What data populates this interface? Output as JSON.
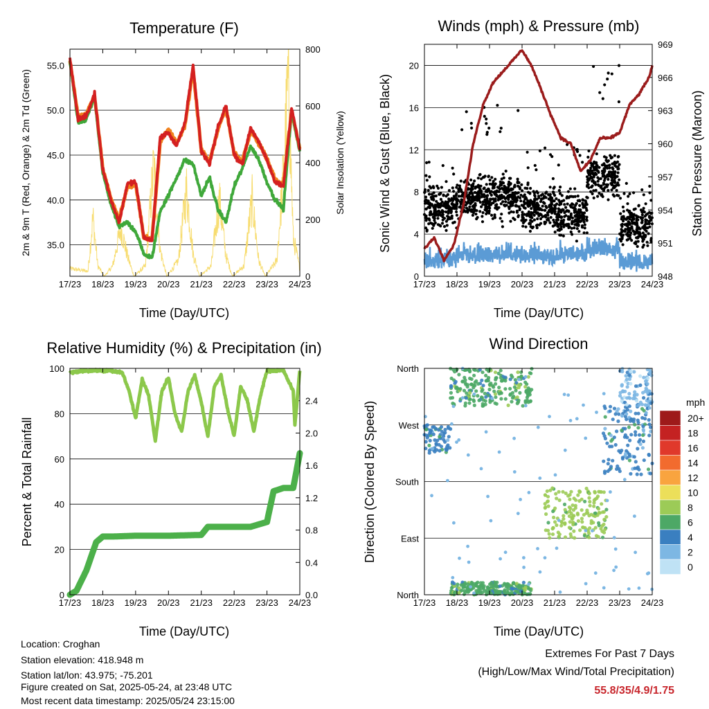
{
  "colors": {
    "temp_red": "#d42020",
    "temp_orange": "#f0821e",
    "dewpoint_green": "#3fa83a",
    "solar_yellow": "#f7dc6f",
    "gust_black": "#000000",
    "wind_blue": "#5b9bd5",
    "pressure_maroon": "#9b1c1c",
    "rh_green": "#8cc84b",
    "rain_green": "#4cb04a",
    "extremes_red": "#c8262c"
  },
  "time_ticks": [
    "17/23",
    "18/23",
    "19/23",
    "20/23",
    "21/23",
    "22/23",
    "23/23",
    "24/23"
  ],
  "speed_legend": {
    "title": "mph",
    "levels": [
      {
        "label": "20+",
        "color": "#9e1a1a"
      },
      {
        "label": "18",
        "color": "#c42222"
      },
      {
        "label": "16",
        "color": "#e0392b"
      },
      {
        "label": "14",
        "color": "#f26b2e"
      },
      {
        "label": "12",
        "color": "#f9a43f"
      },
      {
        "label": "10",
        "color": "#ecdf5a"
      },
      {
        "label": "8",
        "color": "#9ccb57"
      },
      {
        "label": "6",
        "color": "#4da866"
      },
      {
        "label": "4",
        "color": "#3a7fc0"
      },
      {
        "label": "2",
        "color": "#7db7e3"
      },
      {
        "label": "0",
        "color": "#bfe2f5"
      }
    ]
  },
  "chart_data": [
    {
      "type": "line",
      "title": "Temperature (F)",
      "xlabel": "Time (Day/UTC)",
      "ylabel": "2m & 9m T (Red, Orange) & 2m Td (Green)",
      "y2label": "Solar Insolation (Yellow)",
      "ylim": [
        31.5,
        56.8
      ],
      "y2lim": [
        0,
        800
      ],
      "yticks": [
        "55.0",
        "50.0",
        "45.0",
        "40.0",
        "35.0"
      ],
      "y2ticks": [
        "800",
        "600",
        "400",
        "200",
        "0"
      ],
      "x_days": [
        0,
        0.25,
        0.5,
        0.75,
        1,
        1.25,
        1.5,
        1.75,
        2,
        2.25,
        2.5,
        2.75,
        3,
        3.25,
        3.5,
        3.75,
        4,
        4.25,
        4.5,
        4.75,
        5,
        5.25,
        5.5,
        5.75,
        6,
        6.25,
        6.5,
        6.75,
        7
      ],
      "series": [
        {
          "name": "2m T",
          "axis": "left",
          "values": [
            55.8,
            49.0,
            49.3,
            51.8,
            43.5,
            40.0,
            37.5,
            41.8,
            42.0,
            35.8,
            35.5,
            47.0,
            47.5,
            46.0,
            48.5,
            55.0,
            45.5,
            44.0,
            48.0,
            50.5,
            45.0,
            44.0,
            48.0,
            46.5,
            44.5,
            42.0,
            41.5,
            50.3,
            45.5
          ]
        },
        {
          "name": "9m T",
          "axis": "left",
          "values": [
            55.6,
            49.3,
            49.6,
            51.6,
            43.5,
            40.1,
            37.8,
            41.5,
            41.8,
            35.9,
            35.6,
            46.5,
            47.8,
            46.3,
            48.3,
            54.5,
            45.6,
            44.2,
            47.8,
            50.2,
            45.2,
            44.3,
            47.7,
            46.3,
            44.6,
            42.2,
            41.7,
            49.8,
            45.7
          ]
        },
        {
          "name": "2m Td",
          "axis": "left",
          "values": [
            55.5,
            48.5,
            49.0,
            51.5,
            43.0,
            39.5,
            37.0,
            37.5,
            36.5,
            34.0,
            33.5,
            38.8,
            40.5,
            42.5,
            44.5,
            44.0,
            40.5,
            42.5,
            39.0,
            37.5,
            41.5,
            43.5,
            46.0,
            44.5,
            42.0,
            40.0,
            39.0,
            50.0,
            45.3
          ]
        },
        {
          "name": "Solar Insolation",
          "axis": "right",
          "days": [
            0,
            0.55,
            0.7,
            0.85,
            1.05,
            1.3,
            1.55,
            1.75,
            1.95,
            2.3,
            2.55,
            2.75,
            2.95,
            3.3,
            3.55,
            3.75,
            3.95,
            4.3,
            4.55,
            4.75,
            4.95,
            5.3,
            5.55,
            5.75,
            5.95,
            6.3,
            6.5,
            6.65,
            6.8,
            7
          ],
          "values": [
            30,
            20,
            230,
            40,
            0,
            40,
            190,
            80,
            0,
            40,
            430,
            100,
            0,
            60,
            340,
            90,
            0,
            40,
            300,
            80,
            0,
            40,
            300,
            60,
            0,
            60,
            400,
            780,
            150,
            30
          ]
        }
      ]
    },
    {
      "type": "scatter",
      "title": "Winds (mph) & Pressure (mb)",
      "xlabel": "Time (Day/UTC)",
      "ylabel": "Sonic Wind & Gust (Blue, Black)",
      "y2label": "Station Pressure (Maroon)",
      "ylim": [
        0,
        22
      ],
      "y2lim": [
        948,
        969
      ],
      "yticks": [
        "20",
        "16",
        "12",
        "8",
        "4",
        "0"
      ],
      "y2ticks": [
        "969",
        "966",
        "963",
        "960",
        "957",
        "954",
        "951",
        "948"
      ],
      "series": [
        {
          "name": "Station Pressure",
          "axis": "right",
          "days": [
            0,
            0.3,
            0.6,
            0.9,
            1.2,
            1.5,
            1.8,
            2.1,
            2.4,
            2.7,
            3.0,
            3.3,
            3.6,
            3.9,
            4.2,
            4.5,
            4.8,
            5.1,
            5.4,
            5.7,
            6.0,
            6.3,
            6.6,
            6.9,
            7
          ],
          "values": [
            950.5,
            951.5,
            949.5,
            950.8,
            954.5,
            960.0,
            963.5,
            965.5,
            966.5,
            967.5,
            968.5,
            967.0,
            964.8,
            962.5,
            960.5,
            960.0,
            957.5,
            958.5,
            960.5,
            960.5,
            961.0,
            963.5,
            964.5,
            966.0,
            967.0
          ]
        },
        {
          "name": "Gust",
          "axis": "left",
          "daily_mean": [
            6.5,
            7.5,
            7.5,
            6.5,
            6.0,
            9.5,
            5.0
          ],
          "daily_max": [
            11,
            16.2,
            16.3,
            12.5,
            12.5,
            20.0,
            9.0
          ]
        },
        {
          "name": "Sonic Wind",
          "axis": "left",
          "daily_mean": [
            1.5,
            2.0,
            2.0,
            1.8,
            2.0,
            2.5,
            1.2
          ]
        }
      ]
    },
    {
      "type": "line",
      "title": "Relative Humidity (%) & Precipitation (in)",
      "xlabel": "Time (Day/UTC)",
      "ylabel": "Percent & Total Rainfall",
      "ylim": [
        0,
        100
      ],
      "y2lim": [
        0,
        2.8
      ],
      "yticks": [
        "100",
        "80",
        "60",
        "40",
        "20",
        "0"
      ],
      "y2ticks": [
        "2.4",
        "2.0",
        "1.6",
        "1.2",
        "0.8",
        "0.4",
        "0.0"
      ],
      "series": [
        {
          "name": "Relative Humidity",
          "axis": "left",
          "days": [
            0,
            0.4,
            0.8,
            1.2,
            1.6,
            1.8,
            2.0,
            2.2,
            2.4,
            2.6,
            2.8,
            3.0,
            3.2,
            3.4,
            3.6,
            3.8,
            4.0,
            4.2,
            4.4,
            4.6,
            4.8,
            5.0,
            5.2,
            5.4,
            5.6,
            5.8,
            6.0,
            6.2,
            6.5,
            6.8,
            6.85,
            7
          ],
          "values": [
            98,
            99,
            99,
            99,
            98,
            90,
            78,
            95,
            88,
            68,
            90,
            96,
            80,
            72,
            90,
            97,
            85,
            70,
            92,
            97,
            82,
            70,
            92,
            86,
            72,
            88,
            99,
            99,
            99,
            90,
            75,
            99
          ]
        },
        {
          "name": "Total Rainfall",
          "axis": "right",
          "days": [
            0,
            0.2,
            0.5,
            0.8,
            1.0,
            1.3,
            2.0,
            3.0,
            4.0,
            4.2,
            4.6,
            5.0,
            5.5,
            6.0,
            6.2,
            6.5,
            6.8,
            7
          ],
          "values": [
            0.0,
            0.05,
            0.3,
            0.65,
            0.72,
            0.72,
            0.73,
            0.73,
            0.74,
            0.84,
            0.84,
            0.84,
            0.84,
            0.9,
            1.28,
            1.32,
            1.32,
            1.75
          ]
        }
      ]
    },
    {
      "type": "scatter",
      "title": "Wind Direction",
      "xlabel": "Time (Day/UTC)",
      "ylabel": "Direction (Colored By Speed)",
      "yticks": [
        "North",
        "West",
        "South",
        "East",
        "North"
      ],
      "clusters": [
        {
          "day_from": 0,
          "day_to": 0.8,
          "dir_from": 225,
          "dir_to": 270,
          "speed": 2
        },
        {
          "day_from": 0.8,
          "day_to": 3.3,
          "dir_from": 300,
          "dir_to": 360,
          "speed": 3
        },
        {
          "day_from": 0.8,
          "day_to": 3.3,
          "dir_from": 0,
          "dir_to": 20,
          "speed": 3
        },
        {
          "day_from": 3.7,
          "day_to": 5.6,
          "dir_from": 90,
          "dir_to": 170,
          "speed": 4
        },
        {
          "day_from": 5.5,
          "day_to": 7,
          "dir_from": 190,
          "dir_to": 300,
          "speed": 2
        },
        {
          "day_from": 6.0,
          "day_to": 7,
          "dir_from": 300,
          "dir_to": 360,
          "speed": 1
        }
      ]
    }
  ],
  "footer": {
    "location": "Location: Croghan",
    "elevation": "Station elevation: 418.948 m",
    "latlon": "Station lat/lon: 43.975; -75.201",
    "created": "Figure created on Sat, 2025-05-24, at 23:48 UTC",
    "recent": "Most recent data timestamp: 2025/05/24 23:15:00"
  },
  "extremes": {
    "line1": "Extremes For Past 7 Days",
    "line2": "(High/Low/Max Wind/Total Precipitation)",
    "values": "55.8/35/4.9/1.75"
  }
}
